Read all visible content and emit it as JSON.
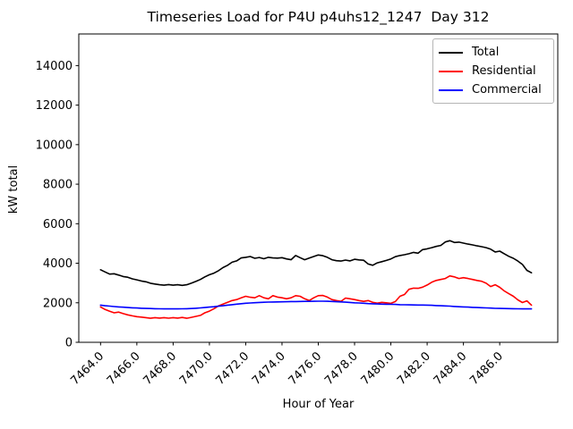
{
  "figure": {
    "title": "Timeseries Load for P4U p4uhs12_1247  Day 312",
    "xlabel": "Hour of Year",
    "ylabel": "kW total"
  },
  "legend": {
    "entries": [
      {
        "label": "Total",
        "color": "#000000"
      },
      {
        "label": "Residential",
        "color": "#ff0000"
      },
      {
        "label": "Commercial",
        "color": "#0000ff"
      }
    ],
    "position": "upper right"
  },
  "chart_data": {
    "type": "line",
    "title": "Timeseries Load for P4U p4uhs12_1247  Day 312",
    "xlabel": "Hour of Year",
    "ylabel": "kW total",
    "grid": false,
    "legend_position": "upper right",
    "xlim": [
      7462.8,
      7489.2
    ],
    "ylim": [
      0,
      15600
    ],
    "xticks": [
      7464,
      7466,
      7468,
      7470,
      7472,
      7474,
      7476,
      7478,
      7480,
      7482,
      7484,
      7486
    ],
    "xtick_labels": [
      "7464.0",
      "7466.0",
      "7468.0",
      "7470.0",
      "7472.0",
      "7474.0",
      "7476.0",
      "7478.0",
      "7480.0",
      "7482.0",
      "7484.0",
      "7486.0"
    ],
    "yticks": [
      0,
      2000,
      4000,
      6000,
      8000,
      10000,
      12000,
      14000
    ],
    "ytick_labels": [
      "0",
      "2000",
      "4000",
      "6000",
      "8000",
      "10000",
      "12000",
      "14000"
    ],
    "x_start": 7464.0,
    "x_step": 0.25,
    "series": [
      {
        "name": "Total",
        "color": "#000000",
        "values": [
          3670,
          3560,
          3450,
          3470,
          3400,
          3330,
          3290,
          3210,
          3160,
          3100,
          3060,
          2990,
          2950,
          2910,
          2890,
          2920,
          2890,
          2910,
          2880,
          2910,
          2990,
          3080,
          3180,
          3310,
          3420,
          3500,
          3620,
          3780,
          3900,
          4050,
          4120,
          4270,
          4300,
          4340,
          4250,
          4290,
          4230,
          4300,
          4270,
          4260,
          4280,
          4220,
          4180,
          4390,
          4280,
          4180,
          4260,
          4340,
          4420,
          4380,
          4300,
          4180,
          4130,
          4110,
          4160,
          4120,
          4200,
          4170,
          4150,
          3960,
          3900,
          4020,
          4080,
          4140,
          4220,
          4330,
          4390,
          4430,
          4480,
          4550,
          4510,
          4690,
          4730,
          4790,
          4850,
          4900,
          5080,
          5140,
          5050,
          5070,
          5020,
          4970,
          4930,
          4880,
          4840,
          4790,
          4710,
          4570,
          4610,
          4480,
          4350,
          4250,
          4110,
          3940,
          3640,
          3520
        ]
      },
      {
        "name": "Residential",
        "color": "#ff0000",
        "values": [
          1790,
          1660,
          1570,
          1490,
          1530,
          1450,
          1390,
          1340,
          1300,
          1275,
          1250,
          1215,
          1250,
          1225,
          1250,
          1220,
          1250,
          1225,
          1255,
          1215,
          1260,
          1310,
          1360,
          1490,
          1580,
          1700,
          1840,
          1930,
          2020,
          2110,
          2160,
          2250,
          2330,
          2280,
          2250,
          2360,
          2250,
          2200,
          2360,
          2290,
          2250,
          2200,
          2250,
          2360,
          2330,
          2200,
          2110,
          2250,
          2360,
          2370,
          2290,
          2160,
          2110,
          2070,
          2240,
          2200,
          2160,
          2110,
          2070,
          2110,
          2020,
          1980,
          2020,
          2000,
          1970,
          2060,
          2330,
          2420,
          2680,
          2740,
          2730,
          2790,
          2900,
          3040,
          3130,
          3180,
          3230,
          3360,
          3310,
          3230,
          3270,
          3230,
          3180,
          3130,
          3090,
          2990,
          2820,
          2910,
          2780,
          2600,
          2460,
          2330,
          2150,
          2010,
          2100,
          1880
        ]
      },
      {
        "name": "Commercial",
        "color": "#0000ff",
        "values": [
          1880,
          1850,
          1830,
          1810,
          1790,
          1775,
          1760,
          1745,
          1735,
          1725,
          1715,
          1710,
          1700,
          1695,
          1690,
          1690,
          1690,
          1690,
          1695,
          1700,
          1710,
          1725,
          1740,
          1760,
          1780,
          1800,
          1825,
          1850,
          1880,
          1905,
          1930,
          1955,
          1975,
          1990,
          2005,
          2015,
          2025,
          2035,
          2040,
          2045,
          2050,
          2055,
          2060,
          2060,
          2065,
          2070,
          2070,
          2075,
          2080,
          2080,
          2075,
          2065,
          2055,
          2045,
          2030,
          2015,
          2000,
          1990,
          1975,
          1960,
          1950,
          1940,
          1930,
          1925,
          1920,
          1915,
          1905,
          1900,
          1895,
          1890,
          1885,
          1885,
          1880,
          1870,
          1860,
          1850,
          1840,
          1830,
          1815,
          1800,
          1790,
          1780,
          1770,
          1760,
          1750,
          1740,
          1730,
          1720,
          1715,
          1710,
          1705,
          1700,
          1695,
          1690,
          1690,
          1690
        ]
      }
    ]
  }
}
